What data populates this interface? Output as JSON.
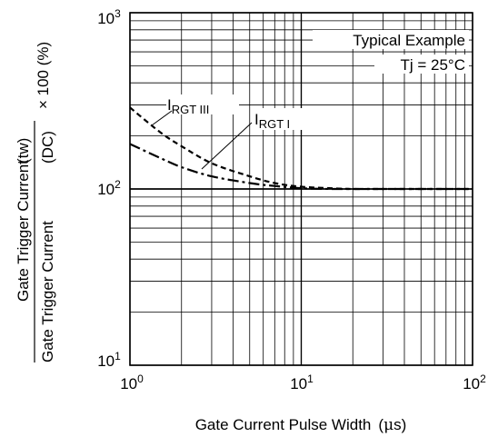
{
  "chart_data": {
    "type": "line",
    "x_scale": "log",
    "y_scale": "log",
    "xlim": [
      1,
      100
    ],
    "ylim": [
      10,
      1000
    ],
    "grid": true,
    "x_ticks": [
      {
        "base": "10",
        "exp": "0",
        "value": 1
      },
      {
        "base": "10",
        "exp": "1",
        "value": 10
      },
      {
        "base": "10",
        "exp": "2",
        "value": 100
      }
    ],
    "y_ticks": [
      {
        "base": "10",
        "exp": "1",
        "value": 10
      },
      {
        "base": "10",
        "exp": "2",
        "value": 100
      },
      {
        "base": "10",
        "exp": "3",
        "value": 1000
      }
    ],
    "xlabel": {
      "text": "Gate Current Pulse Width",
      "unit_open": "(",
      "unit_mu": "μ",
      "unit_rest": "s)"
    },
    "ylabel": {
      "numerator": "Gate Trigger Current",
      "numerator_tag": "(tw)",
      "denominator": "Gate Trigger Current",
      "denominator_tag": "(DC)",
      "suffix": "× 100 (%)"
    },
    "annotations": {
      "condition": "Typical Example",
      "temperature": "Tj = 25°C"
    },
    "series": [
      {
        "name_main": "I",
        "name_sub": "RGT III",
        "style": "dashed",
        "points": [
          [
            1,
            290
          ],
          [
            1.5,
            210
          ],
          [
            2,
            175
          ],
          [
            3,
            140
          ],
          [
            5,
            118
          ],
          [
            7,
            108
          ],
          [
            10,
            103
          ],
          [
            15,
            101
          ],
          [
            20,
            100
          ],
          [
            30,
            100
          ],
          [
            50,
            100
          ],
          [
            100,
            100
          ]
        ]
      },
      {
        "name_main": "I",
        "name_sub": "RGT I",
        "style": "dash-dot",
        "points": [
          [
            1,
            180
          ],
          [
            1.5,
            150
          ],
          [
            2,
            133
          ],
          [
            3,
            118
          ],
          [
            5,
            108
          ],
          [
            7,
            104
          ],
          [
            10,
            101
          ],
          [
            15,
            100
          ],
          [
            20,
            100
          ],
          [
            30,
            100
          ],
          [
            50,
            100
          ],
          [
            100,
            100
          ]
        ]
      }
    ]
  }
}
